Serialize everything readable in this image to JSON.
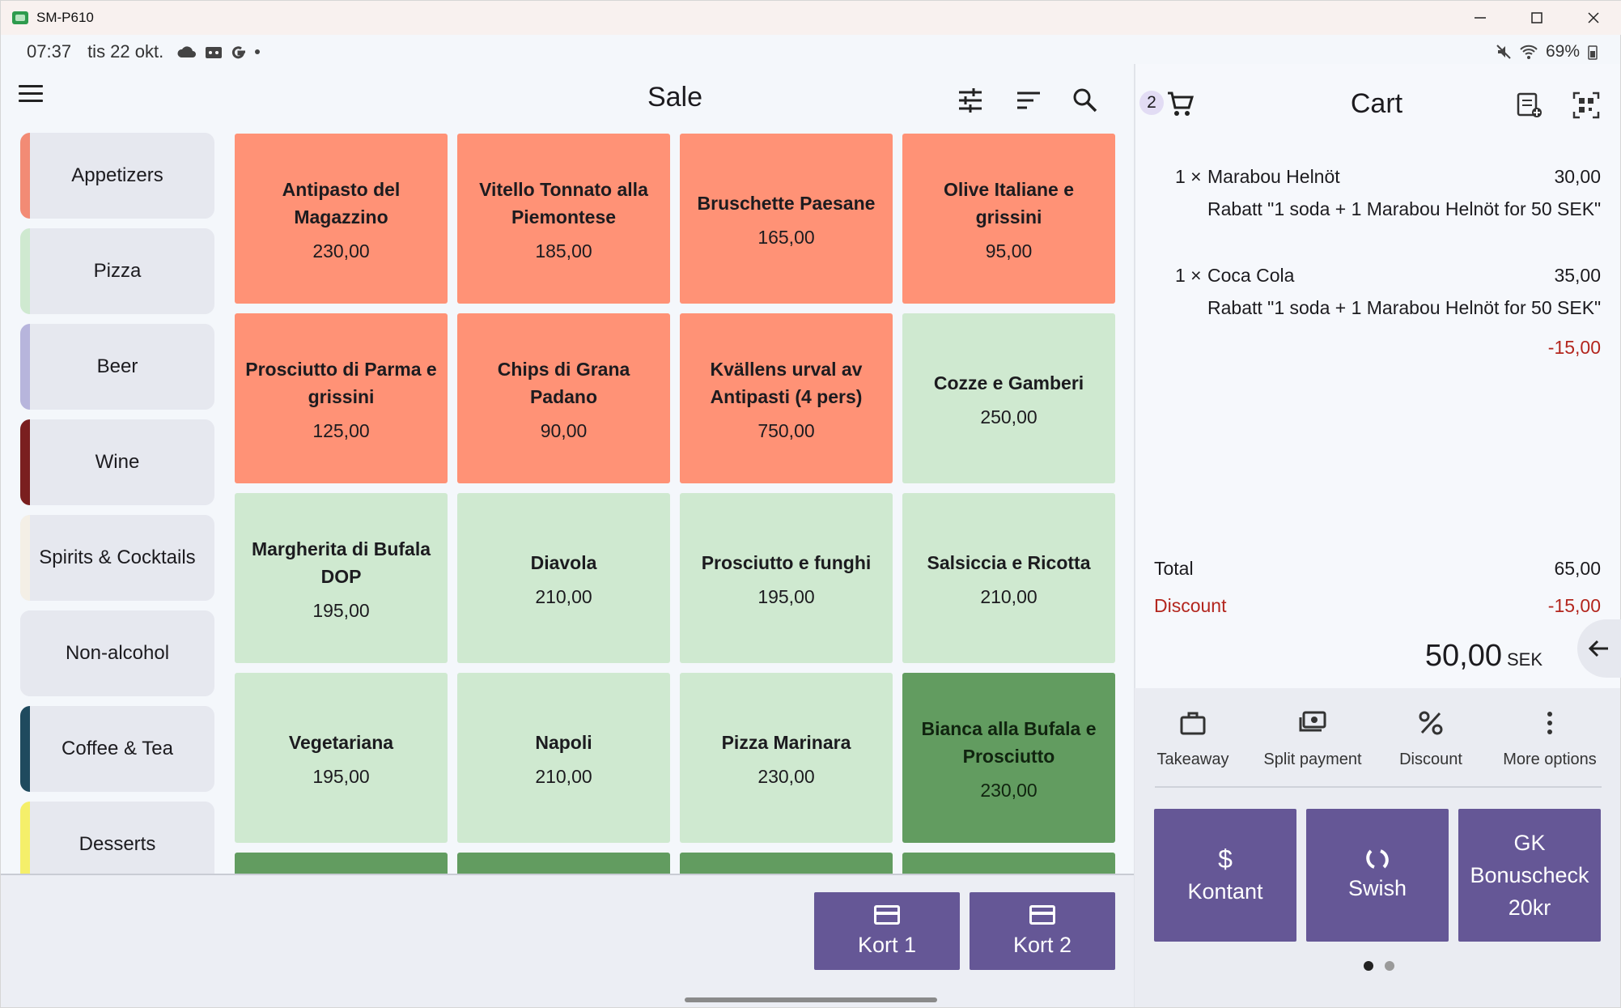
{
  "window": {
    "title": "SM-P610"
  },
  "status": {
    "time": "07:37",
    "date": "tis 22 okt.",
    "battery": "69%",
    "icons": [
      "cloud-icon",
      "robot-icon",
      "google-icon",
      "dot"
    ]
  },
  "sale": {
    "title": "Sale",
    "categories": [
      {
        "label": "Appetizers",
        "color": "#f28b75"
      },
      {
        "label": "Pizza",
        "color": "#cfe9d0"
      },
      {
        "label": "Beer",
        "color": "#b7b5dc"
      },
      {
        "label": "Wine",
        "color": "#7a1f1f"
      },
      {
        "label": "Spirits & Cocktails",
        "color": "#f4efe6"
      },
      {
        "label": "Non-alcohol",
        "color": "#e6e8ef"
      },
      {
        "label": "Coffee & Tea",
        "color": "#1f4a5e"
      },
      {
        "label": "Desserts",
        "color": "#f5ef6a"
      }
    ],
    "products": [
      {
        "name": "Antipasto del Magazzino",
        "price": "230,00",
        "color": "#ff9276"
      },
      {
        "name": "Vitello Tonnato alla Piemontese",
        "price": "185,00",
        "color": "#ff9276"
      },
      {
        "name": "Bruschette Paesane",
        "price": "165,00",
        "color": "#ff9276"
      },
      {
        "name": "Olive Italiane e grissini",
        "price": "95,00",
        "color": "#ff9276"
      },
      {
        "name": "Prosciutto di Parma e grissini",
        "price": "125,00",
        "color": "#ff9276"
      },
      {
        "name": "Chips di Grana Padano",
        "price": "90,00",
        "color": "#ff9276"
      },
      {
        "name": "Kvällens urval av Antipasti (4 pers)",
        "price": "750,00",
        "color": "#ff9276"
      },
      {
        "name": "Cozze e Gamberi",
        "price": "250,00",
        "color": "#cfe9d0"
      },
      {
        "name": "Margherita di Bufala DOP",
        "price": "195,00",
        "color": "#cfe9d0"
      },
      {
        "name": "Diavola",
        "price": "210,00",
        "color": "#cfe9d0"
      },
      {
        "name": "Prosciutto e funghi",
        "price": "195,00",
        "color": "#cfe9d0"
      },
      {
        "name": "Salsiccia e Ricotta",
        "price": "210,00",
        "color": "#cfe9d0"
      },
      {
        "name": "Vegetariana",
        "price": "195,00",
        "color": "#cfe9d0"
      },
      {
        "name": "Napoli",
        "price": "210,00",
        "color": "#cfe9d0"
      },
      {
        "name": "Pizza Marinara",
        "price": "230,00",
        "color": "#cfe9d0"
      },
      {
        "name": "Bianca alla Bufala e Prosciutto",
        "price": "230,00",
        "color": "#629c60"
      },
      {
        "name": "",
        "price": "",
        "color": "#629c60"
      },
      {
        "name": "",
        "price": "",
        "color": "#629c60"
      },
      {
        "name": "",
        "price": "",
        "color": "#629c60"
      },
      {
        "name": "",
        "price": "",
        "color": "#629c60"
      }
    ],
    "kort1": "Kort 1",
    "kort2": "Kort 2"
  },
  "cart": {
    "title": "Cart",
    "count": "2",
    "items": [
      {
        "qty": "1 ×",
        "name": "Marabou Helnöt",
        "price": "30,00",
        "discount_text": "Rabatt \"1 soda + 1 Marabou Helnöt for 50 SEK\""
      },
      {
        "qty": "1 ×",
        "name": "Coca Cola",
        "price": "35,00",
        "discount_text": "Rabatt \"1 soda + 1 Marabou Helnöt for 50 SEK\"",
        "discount_amount": "-15,00"
      }
    ],
    "total_label": "Total",
    "total_value": "65,00",
    "discount_label": "Discount",
    "discount_value": "-15,00",
    "grand_total": "50,00",
    "currency": "SEK",
    "actions": {
      "takeaway": "Takeaway",
      "split": "Split payment",
      "discount": "Discount",
      "more": "More options"
    },
    "pay": {
      "kontant": "Kontant",
      "swish": "Swish",
      "gk_line1": "GK",
      "gk_line2": "Bonuscheck",
      "gk_line3": "20kr"
    }
  },
  "colors": {
    "accent": "#655796",
    "discount_red": "#b3261e"
  }
}
